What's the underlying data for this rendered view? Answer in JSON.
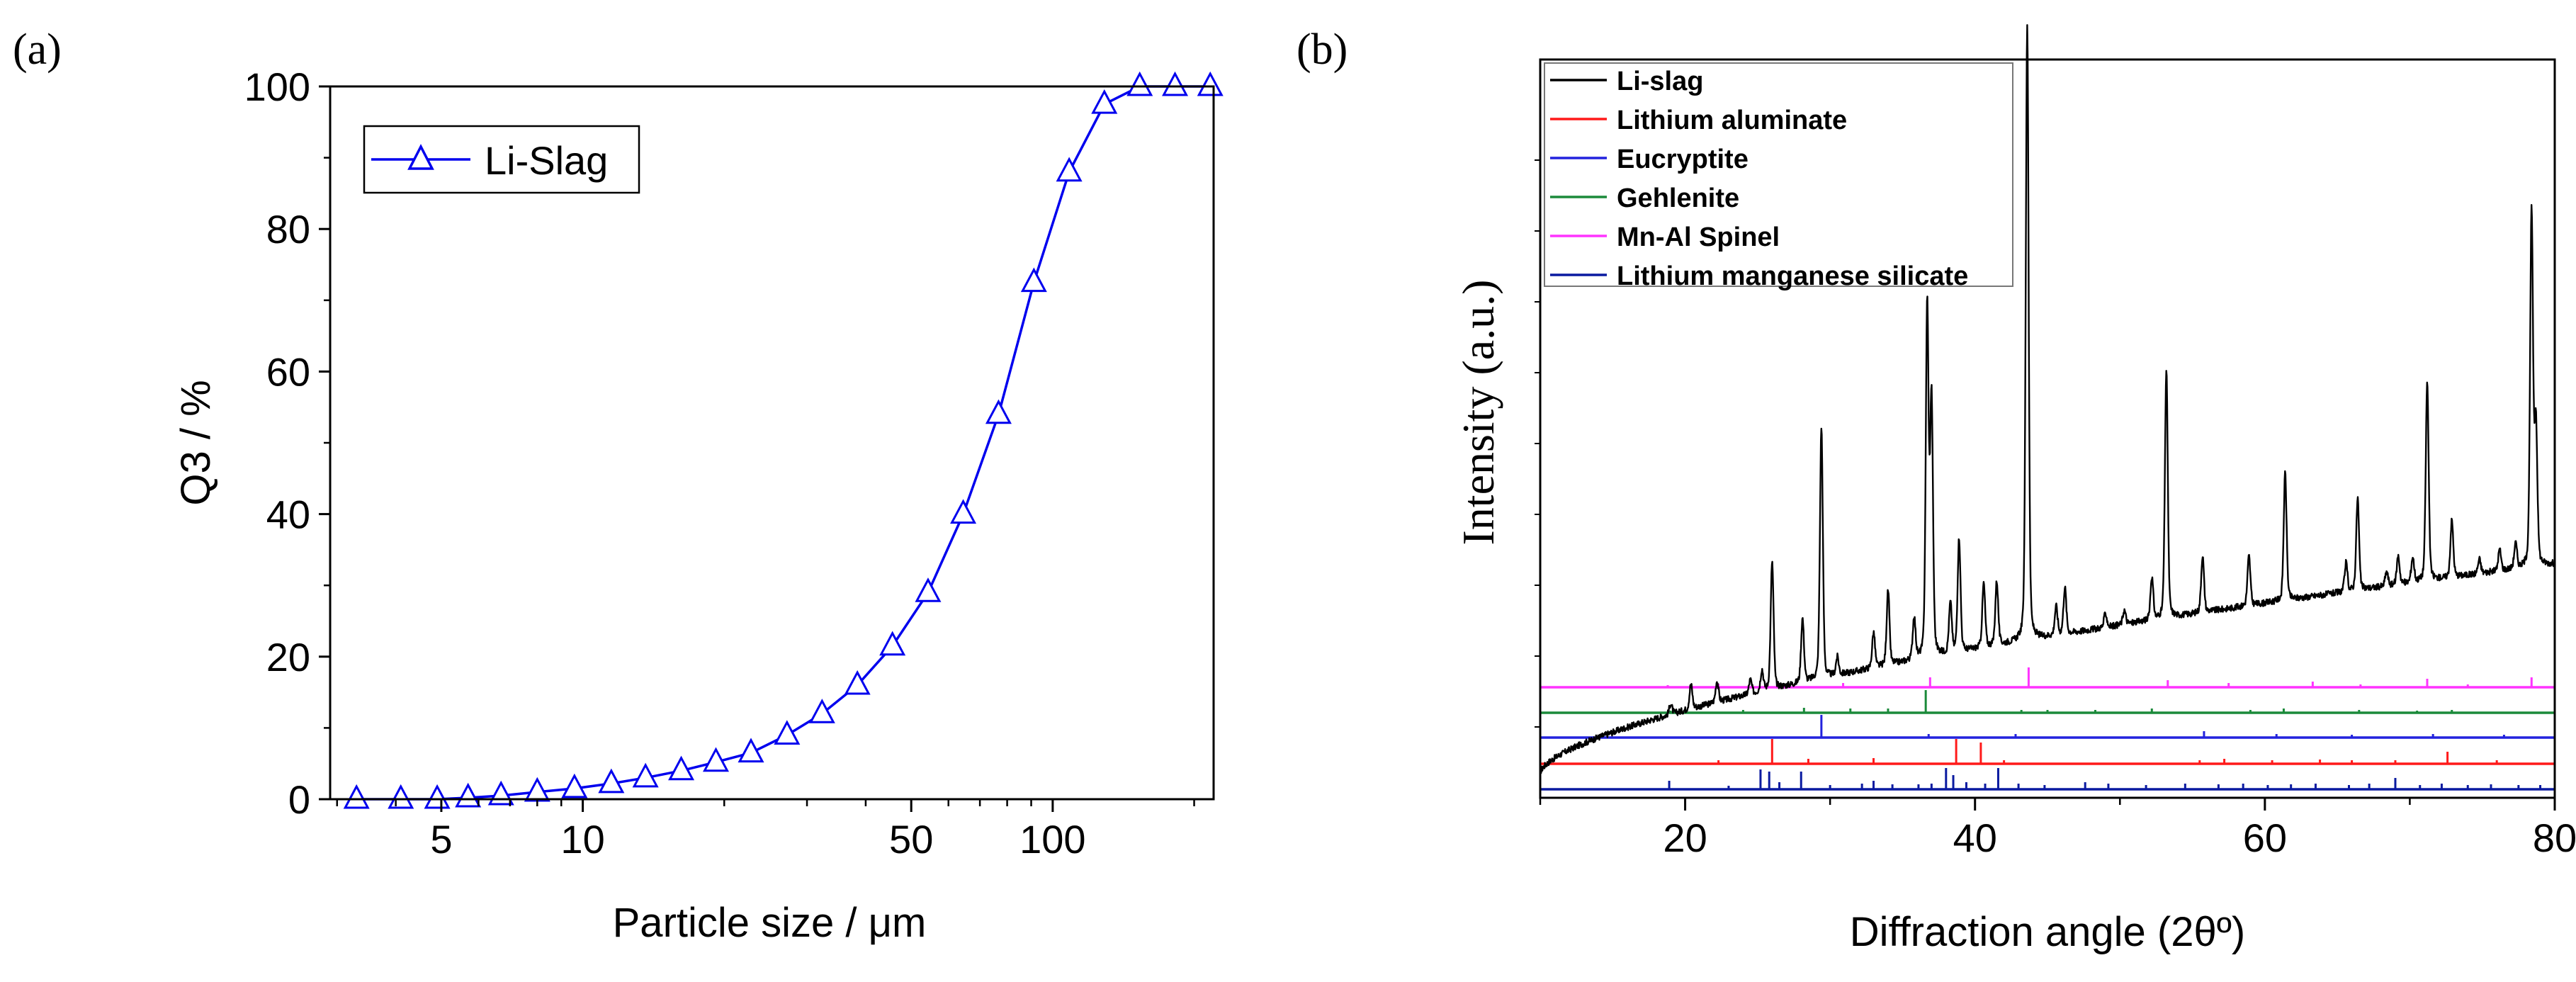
{
  "chart_data": [
    {
      "panel_label": "(a)",
      "type": "line",
      "x_scale": "log",
      "xlabel": "Particle size / μm",
      "ylabel": "Q3 / %",
      "xlim": [
        2.9,
        220
      ],
      "ylim": [
        0,
        100
      ],
      "xticks": [
        {
          "value": 5,
          "label": "5"
        },
        {
          "value": 10,
          "label": "10"
        },
        {
          "value": 50,
          "label": "50"
        },
        {
          "value": 100,
          "label": "100"
        }
      ],
      "yticks": [
        {
          "value": 0,
          "label": "0"
        },
        {
          "value": 20,
          "label": "20"
        },
        {
          "value": 40,
          "label": "40"
        },
        {
          "value": 60,
          "label": "60"
        },
        {
          "value": 80,
          "label": "80"
        },
        {
          "value": 100,
          "label": "100"
        }
      ],
      "legend": {
        "position": "top-left"
      },
      "series": [
        {
          "name": "Li-Slag",
          "color": "#0000ee",
          "marker": "open-triangle",
          "x": [
            3.3,
            4.1,
            4.9,
            5.7,
            6.7,
            8.0,
            9.6,
            11.5,
            13.6,
            16.2,
            19.2,
            22.8,
            27.2,
            32.3,
            38.4,
            45.6,
            54.3,
            64.5,
            76.7,
            91.2,
            108.4,
            128.8,
            153.2,
            182.1,
            216.4
          ],
          "y": [
            0,
            0,
            0,
            0.2,
            0.5,
            1.0,
            1.5,
            2.2,
            3.0,
            4.0,
            5.2,
            6.5,
            9.0,
            12.0,
            16.0,
            21.5,
            29.0,
            40.0,
            54.0,
            72.5,
            88.0,
            97.5,
            100,
            100,
            100
          ]
        }
      ]
    },
    {
      "panel_label": "(b)",
      "type": "line",
      "xlabel": "Diffraction angle (2θº)",
      "ylabel": "Intensity (a.u.)",
      "xlim": [
        10,
        80
      ],
      "xticks": [
        {
          "value": 20,
          "label": "20"
        },
        {
          "value": 40,
          "label": "40"
        },
        {
          "value": 60,
          "label": "60"
        },
        {
          "value": 80,
          "label": "80"
        }
      ],
      "legend": {
        "position": "top-left"
      },
      "series": [
        {
          "name": "Li-slag",
          "color": "#000000",
          "kind": "pattern",
          "baseline_start": 3.5,
          "baseline_end": 33.0,
          "peaks": [
            {
              "x": 19.0,
              "h": 1.5
            },
            {
              "x": 20.4,
              "h": 3.5
            },
            {
              "x": 22.2,
              "h": 3.0
            },
            {
              "x": 24.5,
              "h": 2.0
            },
            {
              "x": 25.3,
              "h": 3.0
            },
            {
              "x": 26.0,
              "h": 18.0
            },
            {
              "x": 28.1,
              "h": 9.0
            },
            {
              "x": 29.4,
              "h": 35.5
            },
            {
              "x": 30.5,
              "h": 2.5
            },
            {
              "x": 33.0,
              "h": 5.0
            },
            {
              "x": 34.0,
              "h": 10.5
            },
            {
              "x": 35.8,
              "h": 6.0
            },
            {
              "x": 36.7,
              "h": 49.5
            },
            {
              "x": 37.0,
              "h": 36.0
            },
            {
              "x": 38.3,
              "h": 7.0
            },
            {
              "x": 38.9,
              "h": 16.0
            },
            {
              "x": 40.6,
              "h": 9.0
            },
            {
              "x": 41.5,
              "h": 9.0
            },
            {
              "x": 43.6,
              "h": 87.0
            },
            {
              "x": 45.6,
              "h": 4.0
            },
            {
              "x": 46.2,
              "h": 6.5
            },
            {
              "x": 49.0,
              "h": 2.0
            },
            {
              "x": 50.3,
              "h": 2.0
            },
            {
              "x": 52.2,
              "h": 6.0
            },
            {
              "x": 53.2,
              "h": 35.0
            },
            {
              "x": 55.7,
              "h": 8.0
            },
            {
              "x": 58.9,
              "h": 7.0
            },
            {
              "x": 61.4,
              "h": 18.0
            },
            {
              "x": 65.6,
              "h": 4.0
            },
            {
              "x": 66.4,
              "h": 13.0
            },
            {
              "x": 68.4,
              "h": 2.0
            },
            {
              "x": 69.2,
              "h": 4.0
            },
            {
              "x": 70.2,
              "h": 3.5
            },
            {
              "x": 71.2,
              "h": 28.0
            },
            {
              "x": 72.9,
              "h": 8.0
            },
            {
              "x": 74.8,
              "h": 2.0
            },
            {
              "x": 76.2,
              "h": 3.0
            },
            {
              "x": 77.3,
              "h": 3.5
            },
            {
              "x": 78.4,
              "h": 50.0
            },
            {
              "x": 78.7,
              "h": 20.0
            }
          ]
        },
        {
          "name": "Lithium aluminate",
          "color": "#ff1a1a",
          "kind": "sticks",
          "offset": 4.8,
          "sticks": [
            {
              "x": 22.3,
              "h": 0.5
            },
            {
              "x": 26.0,
              "h": 3.5
            },
            {
              "x": 28.5,
              "h": 0.7
            },
            {
              "x": 33.0,
              "h": 0.8
            },
            {
              "x": 38.7,
              "h": 3.5
            },
            {
              "x": 40.4,
              "h": 3.0
            },
            {
              "x": 42.0,
              "h": 0.5
            },
            {
              "x": 55.5,
              "h": 0.5
            },
            {
              "x": 57.2,
              "h": 0.7
            },
            {
              "x": 60.5,
              "h": 0.5
            },
            {
              "x": 63.8,
              "h": 0.6
            },
            {
              "x": 66.0,
              "h": 0.5
            },
            {
              "x": 69.0,
              "h": 0.5
            },
            {
              "x": 72.6,
              "h": 1.7
            },
            {
              "x": 76.0,
              "h": 0.5
            }
          ]
        },
        {
          "name": "Eucryptite",
          "color": "#2222dd",
          "kind": "sticks",
          "offset": 8.5,
          "sticks": [
            {
              "x": 29.4,
              "h": 3.2
            },
            {
              "x": 36.8,
              "h": 0.5
            },
            {
              "x": 42.8,
              "h": 0.5
            },
            {
              "x": 55.8,
              "h": 0.9
            },
            {
              "x": 60.8,
              "h": 0.5
            },
            {
              "x": 66.0,
              "h": 0.4
            },
            {
              "x": 71.6,
              "h": 0.5
            },
            {
              "x": 76.5,
              "h": 0.4
            }
          ]
        },
        {
          "name": "Gehlenite",
          "color": "#1b8a3a",
          "kind": "sticks",
          "offset": 12.0,
          "sticks": [
            {
              "x": 19.0,
              "h": 0.3
            },
            {
              "x": 24.0,
              "h": 0.4
            },
            {
              "x": 28.2,
              "h": 0.7
            },
            {
              "x": 31.4,
              "h": 0.6
            },
            {
              "x": 34.0,
              "h": 0.6
            },
            {
              "x": 36.6,
              "h": 3.2
            },
            {
              "x": 43.2,
              "h": 0.4
            },
            {
              "x": 45.0,
              "h": 0.4
            },
            {
              "x": 48.3,
              "h": 0.4
            },
            {
              "x": 52.2,
              "h": 0.6
            },
            {
              "x": 59.0,
              "h": 0.4
            },
            {
              "x": 61.3,
              "h": 0.6
            },
            {
              "x": 66.5,
              "h": 0.4
            },
            {
              "x": 70.5,
              "h": 0.3
            },
            {
              "x": 72.9,
              "h": 0.4
            }
          ]
        },
        {
          "name": "Mn-Al Spinel",
          "color": "#ff33ff",
          "kind": "sticks",
          "offset": 15.6,
          "sticks": [
            {
              "x": 18.8,
              "h": 0.3
            },
            {
              "x": 22.3,
              "h": 0.5
            },
            {
              "x": 30.9,
              "h": 0.6
            },
            {
              "x": 36.9,
              "h": 1.4
            },
            {
              "x": 43.7,
              "h": 2.8
            },
            {
              "x": 53.3,
              "h": 1.0
            },
            {
              "x": 57.5,
              "h": 0.6
            },
            {
              "x": 63.3,
              "h": 0.8
            },
            {
              "x": 66.6,
              "h": 0.4
            },
            {
              "x": 71.2,
              "h": 1.2
            },
            {
              "x": 74.0,
              "h": 0.4
            },
            {
              "x": 78.4,
              "h": 1.4
            }
          ]
        },
        {
          "name": "Lithium manganese silicate",
          "color": "#0a1aa0",
          "kind": "sticks",
          "offset": 1.2,
          "sticks": [
            {
              "x": 18.9,
              "h": 1.2
            },
            {
              "x": 23.0,
              "h": 0.5
            },
            {
              "x": 25.2,
              "h": 2.8
            },
            {
              "x": 25.8,
              "h": 2.5
            },
            {
              "x": 26.5,
              "h": 1.0
            },
            {
              "x": 28.0,
              "h": 2.5
            },
            {
              "x": 30.0,
              "h": 0.6
            },
            {
              "x": 32.2,
              "h": 0.8
            },
            {
              "x": 33.0,
              "h": 1.2
            },
            {
              "x": 34.3,
              "h": 0.7
            },
            {
              "x": 36.1,
              "h": 0.7
            },
            {
              "x": 37.0,
              "h": 0.8
            },
            {
              "x": 38.0,
              "h": 3.0
            },
            {
              "x": 38.5,
              "h": 2.0
            },
            {
              "x": 39.4,
              "h": 1.0
            },
            {
              "x": 40.7,
              "h": 0.8
            },
            {
              "x": 41.6,
              "h": 3.0
            },
            {
              "x": 43.0,
              "h": 0.8
            },
            {
              "x": 44.8,
              "h": 0.6
            },
            {
              "x": 47.6,
              "h": 1.0
            },
            {
              "x": 49.2,
              "h": 0.8
            },
            {
              "x": 51.8,
              "h": 0.6
            },
            {
              "x": 54.5,
              "h": 0.8
            },
            {
              "x": 56.8,
              "h": 0.7
            },
            {
              "x": 58.5,
              "h": 0.8
            },
            {
              "x": 60.2,
              "h": 0.6
            },
            {
              "x": 61.8,
              "h": 0.7
            },
            {
              "x": 63.5,
              "h": 0.8
            },
            {
              "x": 65.8,
              "h": 0.6
            },
            {
              "x": 67.2,
              "h": 0.8
            },
            {
              "x": 69.0,
              "h": 1.6
            },
            {
              "x": 70.7,
              "h": 0.6
            },
            {
              "x": 72.2,
              "h": 0.8
            },
            {
              "x": 74.0,
              "h": 0.6
            },
            {
              "x": 75.6,
              "h": 0.7
            },
            {
              "x": 77.5,
              "h": 0.6
            },
            {
              "x": 79.0,
              "h": 0.6
            }
          ]
        }
      ]
    }
  ]
}
